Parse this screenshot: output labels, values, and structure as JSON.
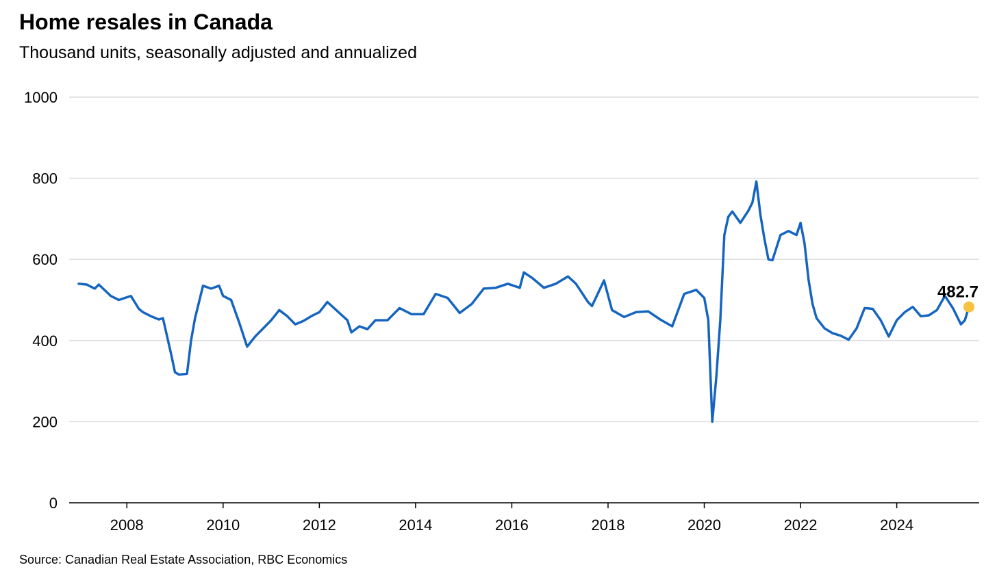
{
  "chart_data": {
    "type": "line",
    "title": "Home resales in Canada",
    "subtitle": "Thousand units, seasonally adjusted and annualized",
    "source": "Source: Canadian Real Estate Association, RBC Economics",
    "xlim": [
      "2007-01",
      "2025-07"
    ],
    "ylim": [
      0,
      1000
    ],
    "yticks": [
      0,
      200,
      400,
      600,
      800,
      1000
    ],
    "xticks": [
      2008,
      2010,
      2012,
      2014,
      2016,
      2018,
      2020,
      2022,
      2024
    ],
    "grid": true,
    "line_color": "#1565c0",
    "marker_color": "#f5c242",
    "end_label": "482.7",
    "series": [
      {
        "x": [
          "2007-01",
          "2007-03",
          "2007-05",
          "2007-06",
          "2007-09",
          "2007-11",
          "2008-02",
          "2008-04",
          "2008-05",
          "2008-07",
          "2008-09",
          "2008-10",
          "2008-12",
          "2009-01",
          "2009-02",
          "2009-04",
          "2009-05",
          "2009-06",
          "2009-08",
          "2009-10",
          "2009-12",
          "2010-01",
          "2010-03",
          "2010-05",
          "2010-07",
          "2010-09",
          "2010-11",
          "2011-01",
          "2011-03",
          "2011-05",
          "2011-07",
          "2011-09",
          "2011-11",
          "2012-01",
          "2012-03",
          "2012-06",
          "2012-08",
          "2012-09",
          "2012-11",
          "2013-01",
          "2013-03",
          "2013-06",
          "2013-09",
          "2013-12",
          "2014-03",
          "2014-06",
          "2014-09",
          "2014-12",
          "2015-03",
          "2015-06",
          "2015-09",
          "2015-12",
          "2016-03",
          "2016-04",
          "2016-06",
          "2016-09",
          "2016-12",
          "2017-03",
          "2017-05",
          "2017-08",
          "2017-09",
          "2017-12",
          "2018-02",
          "2018-05",
          "2018-08",
          "2018-11",
          "2019-02",
          "2019-05",
          "2019-08",
          "2019-11",
          "2020-01",
          "2020-02",
          "2020-03",
          "2020-04",
          "2020-05",
          "2020-06",
          "2020-07",
          "2020-08",
          "2020-10",
          "2020-12",
          "2021-01",
          "2021-02",
          "2021-03",
          "2021-04",
          "2021-05",
          "2021-06",
          "2021-08",
          "2021-10",
          "2021-12",
          "2022-01",
          "2022-02",
          "2022-03",
          "2022-04",
          "2022-05",
          "2022-07",
          "2022-09",
          "2022-11",
          "2023-01",
          "2023-03",
          "2023-05",
          "2023-07",
          "2023-09",
          "2023-11",
          "2024-01",
          "2024-03",
          "2024-05",
          "2024-07",
          "2024-09",
          "2024-11",
          "2025-01",
          "2025-03",
          "2025-05",
          "2025-06",
          "2025-07"
        ],
        "y": [
          540,
          538,
          528,
          538,
          510,
          500,
          510,
          478,
          470,
          460,
          452,
          455,
          368,
          322,
          316,
          318,
          400,
          455,
          535,
          528,
          535,
          510,
          500,
          445,
          385,
          410,
          430,
          450,
          475,
          460,
          440,
          448,
          460,
          470,
          495,
          468,
          450,
          420,
          435,
          428,
          450,
          450,
          480,
          465,
          465,
          515,
          505,
          468,
          490,
          528,
          530,
          540,
          530,
          568,
          555,
          530,
          540,
          558,
          540,
          495,
          485,
          548,
          475,
          458,
          470,
          472,
          452,
          435,
          515,
          525,
          505,
          450,
          200,
          310,
          450,
          660,
          705,
          718,
          690,
          720,
          740,
          792,
          710,
          650,
          600,
          598,
          660,
          670,
          660,
          690,
          640,
          550,
          490,
          455,
          430,
          418,
          412,
          402,
          430,
          480,
          478,
          450,
          410,
          450,
          470,
          483,
          460,
          462,
          475,
          510,
          480,
          440,
          450,
          483
        ]
      }
    ]
  }
}
